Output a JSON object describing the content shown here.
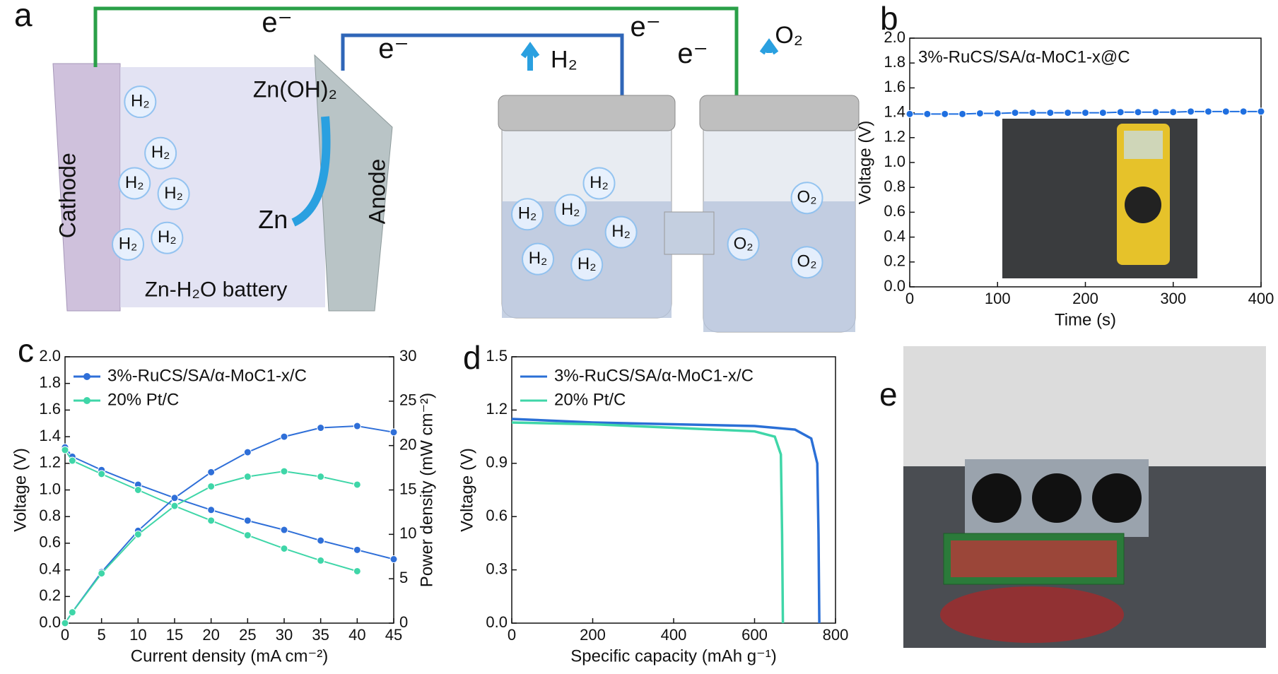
{
  "chart_data": [
    {
      "type": "line",
      "label": "b",
      "xlabel": "Time (s)",
      "ylabel": "Voltage (V)",
      "markers": true,
      "legend": "upper left",
      "x": [
        0,
        20,
        40,
        60,
        80,
        100,
        120,
        140,
        160,
        180,
        200,
        220,
        240,
        260,
        280,
        300,
        320,
        340,
        360,
        380,
        400
      ],
      "series": [
        {
          "name": "3%-RuCS/SA/α-MoC1-x@C",
          "color": "#1f6fe0",
          "values": [
            1.39,
            1.39,
            1.39,
            1.39,
            1.395,
            1.395,
            1.4,
            1.4,
            1.4,
            1.4,
            1.4,
            1.4,
            1.405,
            1.405,
            1.405,
            1.405,
            1.41,
            1.41,
            1.41,
            1.41,
            1.41
          ]
        }
      ],
      "xlim": [
        0,
        400
      ],
      "xticks": [
        0,
        100,
        200,
        300,
        400
      ],
      "ylim": [
        0,
        2
      ],
      "yticks": [
        {
          "value": 0,
          "label": "0.0"
        },
        0.2,
        0.4,
        0.6,
        0.8,
        {
          "value": 1,
          "label": "1.0"
        },
        1.2,
        1.4,
        1.6,
        1.8,
        {
          "value": 2,
          "label": "2.0"
        }
      ]
    },
    {
      "type": "line",
      "label": "c",
      "xlabel": "Current density (mA cm⁻²)",
      "ylabel": "Voltage (V)",
      "y2label": "Power density (mW cm⁻²)",
      "markers": true,
      "legend": "upper left",
      "x": [
        0,
        1,
        5,
        10,
        15,
        20,
        25,
        30,
        35,
        40,
        45
      ],
      "series": [
        {
          "name": "3%-RuCS/SA/α-MoC1-x/C",
          "color": "#2f6fd8",
          "values": [
            1.32,
            1.25,
            1.15,
            1.04,
            0.94,
            0.85,
            0.77,
            0.7,
            0.62,
            0.55,
            0.48
          ]
        },
        {
          "name": "20% Pt/C",
          "color": "#3fd6a8",
          "values": [
            1.3,
            1.22,
            1.12,
            1.0,
            0.88,
            0.77,
            0.66,
            0.56,
            0.47,
            0.39,
            null
          ]
        },
        {
          "name": "3%-RuCS/SA/α-MoC1-x/C",
          "color": "#2f6fd8",
          "axis": "y2",
          "values": [
            0,
            1.25,
            5.75,
            10.4,
            14.1,
            17,
            19.25,
            21,
            22,
            22.2,
            21.5
          ]
        },
        {
          "name": "20% Pt/C",
          "color": "#3fd6a8",
          "axis": "y2",
          "values": [
            0,
            1.22,
            5.6,
            10,
            13.2,
            15.4,
            16.5,
            17.1,
            16.5,
            15.6,
            null
          ]
        }
      ],
      "xlim": [
        0,
        45
      ],
      "xticks": [
        0,
        5,
        10,
        15,
        20,
        25,
        30,
        35,
        40,
        45
      ],
      "ylim": [
        0,
        2
      ],
      "yticks": [
        {
          "value": 0,
          "label": "0.0"
        },
        0.2,
        0.4,
        0.6,
        0.8,
        {
          "value": 1,
          "label": "1.0"
        },
        1.2,
        1.4,
        1.6,
        1.8,
        {
          "value": 2,
          "label": "2.0"
        }
      ],
      "y2lim": [
        0,
        30
      ],
      "y2ticks": [
        0,
        5,
        10,
        15,
        20,
        25,
        30
      ]
    },
    {
      "type": "line",
      "label": "d",
      "xlabel": "Specific capacity (mAh g⁻¹)",
      "ylabel": "Voltage (V)",
      "markers": false,
      "legend": "upper left",
      "series": [
        {
          "name": "3%-RuCS/SA/α-MoC1-x/C",
          "color": "#2a6fd6",
          "x": [
            0,
            200,
            400,
            600,
            700,
            740,
            755,
            758,
            760
          ],
          "values": [
            1.15,
            1.13,
            1.12,
            1.11,
            1.09,
            1.04,
            0.9,
            0.5,
            0
          ]
        },
        {
          "name": "20% Pt/C",
          "color": "#3fd6a8",
          "x": [
            0,
            200,
            400,
            600,
            650,
            665,
            668,
            670
          ],
          "values": [
            1.13,
            1.12,
            1.1,
            1.08,
            1.05,
            0.95,
            0.5,
            0
          ]
        }
      ],
      "xlim": [
        0,
        800
      ],
      "xticks": [
        0,
        200,
        400,
        600,
        800
      ],
      "ylim": [
        0,
        1.5
      ],
      "yticks": [
        {
          "value": 0,
          "label": "0.0"
        },
        0.3,
        0.6,
        0.9,
        1.2,
        1.5
      ]
    }
  ],
  "schematic": {
    "label": "a",
    "electrons": [
      "e⁻",
      "e⁻",
      "e⁻",
      "e⁻"
    ],
    "products": [
      "H₂",
      "O₂"
    ],
    "zn_oh2": "Zn(OH)₂",
    "zn": "Zn",
    "cathode": "Cathode",
    "anode": "Anode",
    "battery": "Zn-H₂O battery",
    "bubbles": [
      "H₂",
      "H₂",
      "H₂",
      "H₂",
      "H₂",
      "H₂",
      "H₂",
      "H₂",
      "H₂",
      "H₂",
      "H₂",
      "H₂",
      "O₂",
      "O₂",
      "O₂"
    ]
  },
  "photo": {
    "label": "e"
  }
}
